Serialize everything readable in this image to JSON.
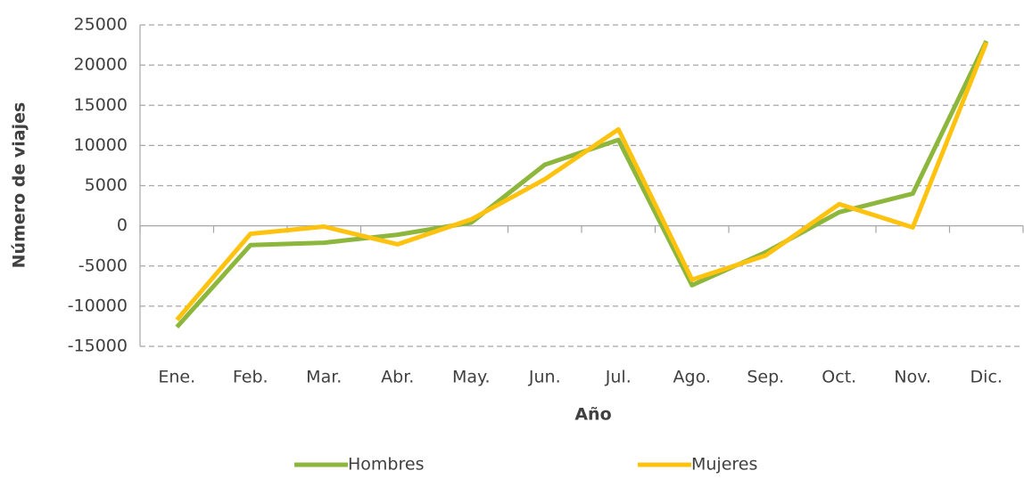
{
  "chart_data": {
    "type": "line",
    "x_label": "Año",
    "y_label": "Número de viajes",
    "categories": [
      "Ene.",
      "Feb.",
      "Mar.",
      "Abr.",
      "May.",
      "Jun.",
      "Jul.",
      "Ago.",
      "Sep.",
      "Oct.",
      "Nov.",
      "Dic."
    ],
    "series": [
      {
        "name": "Hombres",
        "color": "#8db63c",
        "values": [
          -12600,
          -2400,
          -2100,
          -1100,
          400,
          7600,
          10700,
          -7400,
          -3300,
          1700,
          4000,
          23000
        ]
      },
      {
        "name": "Mujeres",
        "color": "#ffc20e",
        "values": [
          -11700,
          -1000,
          -100,
          -2300,
          800,
          5800,
          12000,
          -6700,
          -3700,
          2700,
          -200,
          22800
        ]
      }
    ],
    "ylim": [
      -15000,
      25000
    ],
    "yticks": [
      -15000,
      -10000,
      -5000,
      0,
      5000,
      10000,
      15000,
      20000,
      25000
    ],
    "grid": true,
    "legend": "bottom"
  }
}
